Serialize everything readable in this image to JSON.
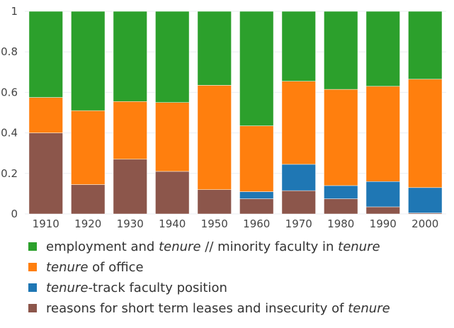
{
  "chart_data": {
    "type": "bar",
    "stacked": true,
    "categories": [
      "1910",
      "1920",
      "1930",
      "1940",
      "1950",
      "1960",
      "1970",
      "1980",
      "1990",
      "2000"
    ],
    "ylim": [
      0,
      1
    ],
    "yticks": [
      "0",
      "0.2",
      "0.4",
      "0.6",
      "0.8",
      "1"
    ],
    "grid": true,
    "legend_position": "bottom",
    "series": [
      {
        "key": "short_term",
        "color": "#8c564b",
        "legend_parts": [
          [
            "reasons for short term leases and insecurity of ",
            false
          ],
          [
            "tenure",
            true
          ]
        ],
        "values": [
          0.4,
          0.145,
          0.27,
          0.21,
          0.12,
          0.075,
          0.115,
          0.075,
          0.035,
          0.005
        ]
      },
      {
        "key": "tenure_track",
        "color": "#1f77b4",
        "legend_parts": [
          [
            "tenure",
            true
          ],
          [
            "-track faculty position",
            false
          ]
        ],
        "values": [
          0.0,
          0.0,
          0.0,
          0.0,
          0.0,
          0.035,
          0.13,
          0.065,
          0.125,
          0.125
        ]
      },
      {
        "key": "tenure_of_office",
        "color": "#ff7f0e",
        "legend_parts": [
          [
            "tenure",
            true
          ],
          [
            " of office",
            false
          ]
        ],
        "values": [
          0.175,
          0.365,
          0.285,
          0.34,
          0.515,
          0.325,
          0.41,
          0.475,
          0.47,
          0.535
        ]
      },
      {
        "key": "employment_minority",
        "color": "#2ca02c",
        "legend_parts": [
          [
            "employment and ",
            false
          ],
          [
            "tenure",
            true
          ],
          [
            " // minority faculty in ",
            false
          ],
          [
            "tenure",
            true
          ]
        ],
        "values": [
          0.425,
          0.49,
          0.445,
          0.45,
          0.365,
          0.565,
          0.345,
          0.385,
          0.37,
          0.335
        ]
      }
    ]
  }
}
